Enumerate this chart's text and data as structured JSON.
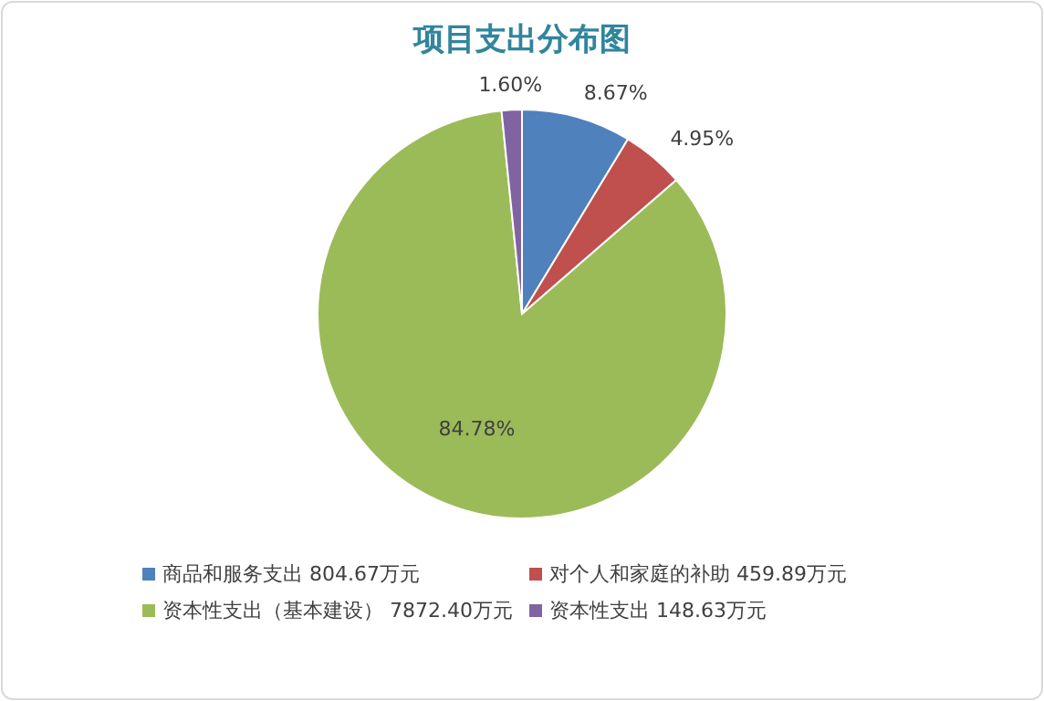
{
  "chart_data": {
    "type": "pie",
    "title": "项目支出分布图",
    "categories": [
      "商品和服务支出 804.67万元",
      "对个人和家庭的补助 459.89万元",
      "资本性支出（基本建设） 7872.40万元",
      "资本性支出 148.63万元"
    ],
    "values": [
      8.67,
      4.95,
      84.78,
      1.6
    ],
    "colors": [
      "#4f81bd",
      "#c0504d",
      "#9bbb59",
      "#8064a2"
    ],
    "value_labels": [
      "8.67%",
      "4.95%",
      "84.78%",
      "1.60%"
    ],
    "legend": "bottom"
  }
}
